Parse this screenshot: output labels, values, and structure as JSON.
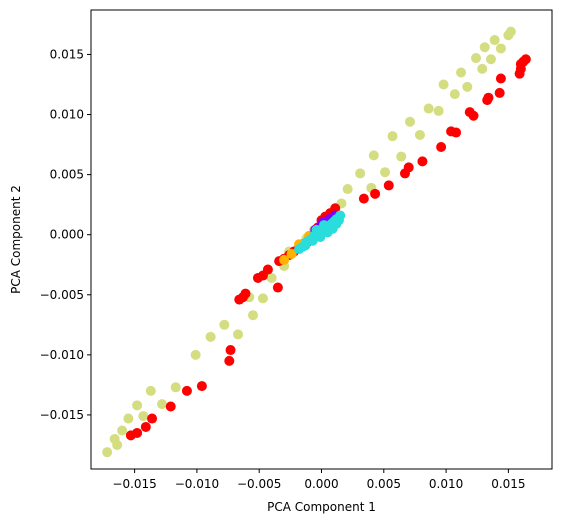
{
  "chart_data": {
    "type": "scatter",
    "title": "",
    "xlabel": "PCA Component 1",
    "ylabel": "PCA Component 2",
    "xlim": [
      -0.0185,
      0.0185
    ],
    "ylim": [
      -0.0195,
      0.0187
    ],
    "xticks": [
      -0.015,
      -0.01,
      -0.005,
      0.0,
      0.005,
      0.01,
      0.015
    ],
    "xtick_labels": [
      "−0.015",
      "−0.010",
      "−0.005",
      "0.000",
      "0.005",
      "0.010",
      "0.015"
    ],
    "yticks": [
      -0.015,
      -0.01,
      -0.005,
      0.0,
      0.005,
      0.01,
      0.015
    ],
    "ytick_labels": [
      "−0.015",
      "−0.010",
      "−0.005",
      "0.000",
      "0.005",
      "0.010",
      "0.015"
    ],
    "grid": false,
    "series": [
      {
        "color": "#d4dd80",
        "points": [
          [
            -0.0172,
            -0.0181
          ],
          [
            -0.0166,
            -0.017
          ],
          [
            -0.0164,
            -0.0175
          ],
          [
            -0.016,
            -0.0163
          ],
          [
            -0.0155,
            -0.0153
          ],
          [
            -0.0148,
            -0.0142
          ],
          [
            -0.0143,
            -0.0151
          ],
          [
            -0.0137,
            -0.013
          ],
          [
            -0.0128,
            -0.0141
          ],
          [
            -0.0117,
            -0.0127
          ],
          [
            -0.0101,
            -0.01
          ],
          [
            -0.0089,
            -0.0085
          ],
          [
            -0.0078,
            -0.0075
          ],
          [
            -0.0067,
            -0.0083
          ],
          [
            -0.0058,
            -0.0052
          ],
          [
            -0.0055,
            -0.0067
          ],
          [
            -0.0047,
            -0.0053
          ],
          [
            -0.004,
            -0.0036
          ],
          [
            -0.003,
            -0.0026
          ],
          [
            -0.0026,
            -0.0014
          ],
          [
            -0.0018,
            -0.001
          ],
          [
            -0.0012,
            -0.0003
          ],
          [
            -0.0006,
            0.0004
          ],
          [
            0.0003,
            0.0009
          ],
          [
            0.0009,
            0.0011
          ],
          [
            0.0016,
            0.0026
          ],
          [
            0.0021,
            0.0038
          ],
          [
            0.0031,
            0.0051
          ],
          [
            0.004,
            0.0039
          ],
          [
            0.0042,
            0.0066
          ],
          [
            0.0051,
            0.0052
          ],
          [
            0.0057,
            0.0082
          ],
          [
            0.0064,
            0.0065
          ],
          [
            0.0071,
            0.0094
          ],
          [
            0.0079,
            0.0083
          ],
          [
            0.0086,
            0.0105
          ],
          [
            0.0094,
            0.0103
          ],
          [
            0.0098,
            0.0125
          ],
          [
            0.0107,
            0.0117
          ],
          [
            0.0112,
            0.0135
          ],
          [
            0.0117,
            0.0123
          ],
          [
            0.0124,
            0.0147
          ],
          [
            0.0129,
            0.0138
          ],
          [
            0.0131,
            0.0156
          ],
          [
            0.0136,
            0.0146
          ],
          [
            0.0139,
            0.0162
          ],
          [
            0.0144,
            0.0155
          ],
          [
            0.015,
            0.0166
          ],
          [
            0.0152,
            0.0169
          ]
        ]
      },
      {
        "color": "#ff0000",
        "points": [
          [
            -0.0153,
            -0.0167
          ],
          [
            -0.0148,
            -0.0165
          ],
          [
            -0.0141,
            -0.016
          ],
          [
            -0.0136,
            -0.0153
          ],
          [
            -0.0121,
            -0.0143
          ],
          [
            -0.0108,
            -0.013
          ],
          [
            -0.0096,
            -0.0126
          ],
          [
            -0.0074,
            -0.0105
          ],
          [
            -0.0073,
            -0.0096
          ],
          [
            -0.0066,
            -0.0054
          ],
          [
            -0.0063,
            -0.0052
          ],
          [
            -0.0061,
            -0.0049
          ],
          [
            -0.0051,
            -0.0036
          ],
          [
            -0.0047,
            -0.0034
          ],
          [
            -0.0043,
            -0.0029
          ],
          [
            -0.0035,
            -0.0044
          ],
          [
            -0.0034,
            -0.0022
          ],
          [
            -0.003,
            -0.002
          ],
          [
            -0.0026,
            -0.0017
          ],
          [
            -0.0022,
            -0.0014
          ],
          [
            -0.0018,
            -0.0011
          ],
          [
            -0.0015,
            -0.0008
          ],
          [
            -0.0011,
            -0.0006
          ],
          [
            -0.0008,
            -0.0003
          ],
          [
            -0.0006,
            0.0
          ],
          [
            -0.0003,
            0.0006
          ],
          [
            0.0,
            0.0012
          ],
          [
            0.0003,
            0.0015
          ],
          [
            0.0007,
            0.0018
          ],
          [
            0.0011,
            0.0022
          ],
          [
            0.0034,
            0.003
          ],
          [
            0.0043,
            0.0034
          ],
          [
            0.0054,
            0.0041
          ],
          [
            0.0067,
            0.0051
          ],
          [
            0.007,
            0.0056
          ],
          [
            0.0081,
            0.0061
          ],
          [
            0.0096,
            0.0073
          ],
          [
            0.0104,
            0.0086
          ],
          [
            0.0108,
            0.0085
          ],
          [
            0.0119,
            0.0102
          ],
          [
            0.0122,
            0.0099
          ],
          [
            0.0133,
            0.0112
          ],
          [
            0.0134,
            0.0114
          ],
          [
            0.0143,
            0.0118
          ],
          [
            0.0144,
            0.013
          ],
          [
            0.0159,
            0.0134
          ],
          [
            0.016,
            0.0138
          ],
          [
            0.016,
            0.0142
          ],
          [
            0.0162,
            0.0144
          ],
          [
            0.0164,
            0.0146
          ]
        ]
      },
      {
        "color": "#ffb300",
        "points": [
          [
            -0.003,
            -0.0021
          ],
          [
            -0.0024,
            -0.0016
          ],
          [
            -0.0018,
            -0.0008
          ],
          [
            -0.001,
            -0.0001
          ],
          [
            -0.0004,
            0.0004
          ],
          [
            0.0001,
            0.0008
          ]
        ]
      },
      {
        "color": "#8000ff",
        "points": [
          [
            -0.0005,
            0.0004
          ],
          [
            0.0001,
            0.001
          ],
          [
            0.0006,
            0.0013
          ],
          [
            0.001,
            0.0014
          ],
          [
            0.0011,
            0.0016
          ],
          [
            -0.0002,
            0.0006
          ]
        ]
      },
      {
        "color": "#2adddd",
        "points": [
          [
            -0.0018,
            -0.0012
          ],
          [
            -0.0015,
            -0.001
          ],
          [
            -0.0012,
            -0.0006
          ],
          [
            -0.0009,
            -0.0004
          ],
          [
            -0.0006,
            -0.0001
          ],
          [
            -0.0003,
            0.0001
          ],
          [
            0.0,
            0.0003
          ],
          [
            0.0003,
            0.0005
          ],
          [
            0.0006,
            0.0007
          ],
          [
            0.0008,
            0.0009
          ],
          [
            0.001,
            0.0011
          ],
          [
            0.0012,
            0.0013
          ],
          [
            0.0014,
            0.0012
          ],
          [
            0.0009,
            0.0005
          ],
          [
            0.0005,
            0.0002
          ],
          [
            -0.0001,
            -0.0002
          ],
          [
            -0.0007,
            -0.0005
          ],
          [
            -0.0013,
            -0.0009
          ],
          [
            0.0012,
            0.0009
          ],
          [
            0.0002,
            0.0008
          ],
          [
            -0.0004,
            0.0004
          ],
          [
            0.0015,
            0.0016
          ]
        ]
      }
    ]
  }
}
